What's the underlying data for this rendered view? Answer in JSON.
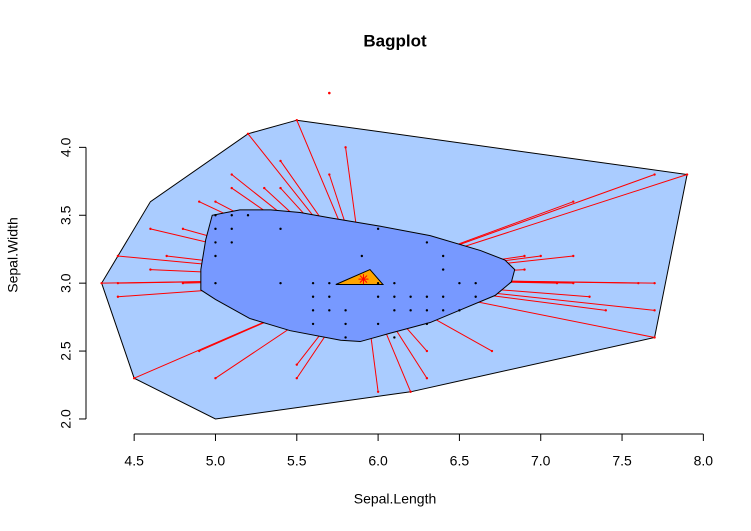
{
  "chart_data": {
    "type": "bagplot",
    "title": "Bagplot",
    "xlabel": "Sepal.Length",
    "ylabel": "Sepal.Width",
    "xlim": [
      4.21,
      8.09
    ],
    "ylim": [
      1.904,
      4.496
    ],
    "xticks": [
      4.5,
      {
        "value": 5,
        "label": "5.0"
      },
      5.5,
      {
        "value": 6,
        "label": "6.0"
      },
      6.5,
      {
        "value": 7,
        "label": "7.0"
      },
      7.5,
      {
        "value": 8,
        "label": "8.0"
      }
    ],
    "yticks": [
      {
        "value": 2,
        "label": "2.0"
      },
      2.5,
      {
        "value": 3,
        "label": "3.0"
      },
      3.5,
      {
        "value": 4,
        "label": "4.0"
      }
    ],
    "loop": {
      "color": "#aaccff",
      "x": [
        4.3,
        4.5,
        5.0,
        6.2,
        7.7,
        7.9,
        5.5,
        5.2,
        4.6
      ],
      "y": [
        3.0,
        2.3,
        2.0,
        2.2,
        2.6,
        3.8,
        4.2,
        4.1,
        3.6
      ]
    },
    "bag": {
      "color": "#7799ff",
      "x": [
        4.91,
        4.94,
        4.98,
        5.15,
        5.34,
        5.52,
        5.71,
        6.01,
        6.32,
        6.63,
        6.78,
        6.84,
        6.82,
        6.72,
        6.5,
        6.32,
        6.07,
        5.89,
        5.77,
        5.46,
        5.21,
        5.0,
        4.91
      ],
      "y": [
        3.1,
        3.32,
        3.5,
        3.54,
        3.54,
        3.52,
        3.48,
        3.42,
        3.35,
        3.24,
        3.17,
        3.1,
        3.01,
        2.91,
        2.8,
        2.71,
        2.63,
        2.57,
        2.58,
        2.65,
        2.74,
        2.88,
        2.95
      ]
    },
    "median_region": {
      "color": "orange",
      "x": [
        5.74,
        5.95,
        6.03
      ],
      "y": [
        2.99,
        3.1,
        2.99
      ]
    },
    "center": {
      "color": "red",
      "x": 5.91,
      "y": 3.03
    },
    "points_inside": {
      "color": "black",
      "x": [
        5.0,
        5.1,
        5.2,
        5.0,
        5.1,
        5.4,
        6.0,
        5.0,
        5.1,
        6.3,
        5.0,
        5.9,
        6.4,
        6.4,
        5.0,
        5.4,
        5.6,
        5.7,
        6.0,
        6.1,
        6.5,
        6.6,
        5.6,
        5.7,
        6.0,
        6.1,
        6.2,
        6.3,
        6.4,
        6.6,
        5.6,
        5.7,
        5.8,
        6.1,
        6.2,
        6.3,
        6.4,
        6.5,
        5.6,
        5.8,
        6.0,
        6.3,
        5.8,
        6.1
      ],
      "y": [
        3.5,
        3.5,
        3.5,
        3.4,
        3.4,
        3.4,
        3.4,
        3.3,
        3.3,
        3.3,
        3.2,
        3.2,
        3.2,
        3.1,
        3.0,
        3.0,
        3.0,
        3.0,
        3.0,
        3.0,
        3.0,
        3.0,
        2.9,
        2.9,
        2.9,
        2.9,
        2.9,
        2.9,
        2.9,
        2.9,
        2.8,
        2.8,
        2.8,
        2.8,
        2.8,
        2.8,
        2.8,
        2.8,
        2.7,
        2.7,
        2.7,
        2.7,
        2.6,
        2.6
      ]
    },
    "points_outside": {
      "color": "red",
      "x": [
        7.9,
        7.7,
        7.7,
        7.7,
        7.2,
        7.7,
        7.6,
        7.4,
        7.3,
        7.2,
        7.2,
        7.1,
        6.9,
        6.9,
        7.0,
        6.7,
        6.3,
        6.0,
        6.2,
        6.3,
        5.0,
        4.5,
        5.5,
        5.5,
        4.9,
        4.8,
        4.4,
        4.3,
        4.4,
        4.6,
        4.7,
        4.6,
        4.4,
        4.8,
        4.9,
        5.1,
        5.4,
        5.7,
        5.5,
        5.2,
        5.8,
        5.4,
        5.3,
        5.1,
        5.0
      ],
      "y": [
        3.8,
        3.8,
        2.6,
        3.0,
        3.6,
        2.8,
        3.0,
        2.8,
        2.9,
        3.2,
        3.0,
        3.0,
        3.1,
        3.2,
        3.2,
        2.5,
        2.3,
        2.2,
        2.2,
        2.5,
        2.3,
        2.3,
        2.3,
        2.4,
        2.5,
        3.0,
        3.0,
        3.0,
        2.9,
        3.1,
        3.2,
        3.4,
        3.2,
        3.4,
        3.6,
        3.8,
        3.9,
        3.8,
        4.2,
        4.1,
        4.0,
        3.7,
        3.7,
        3.7,
        3.6
      ]
    },
    "outliers": {
      "color": "red",
      "x": [
        5.7
      ],
      "y": [
        4.4
      ]
    }
  }
}
